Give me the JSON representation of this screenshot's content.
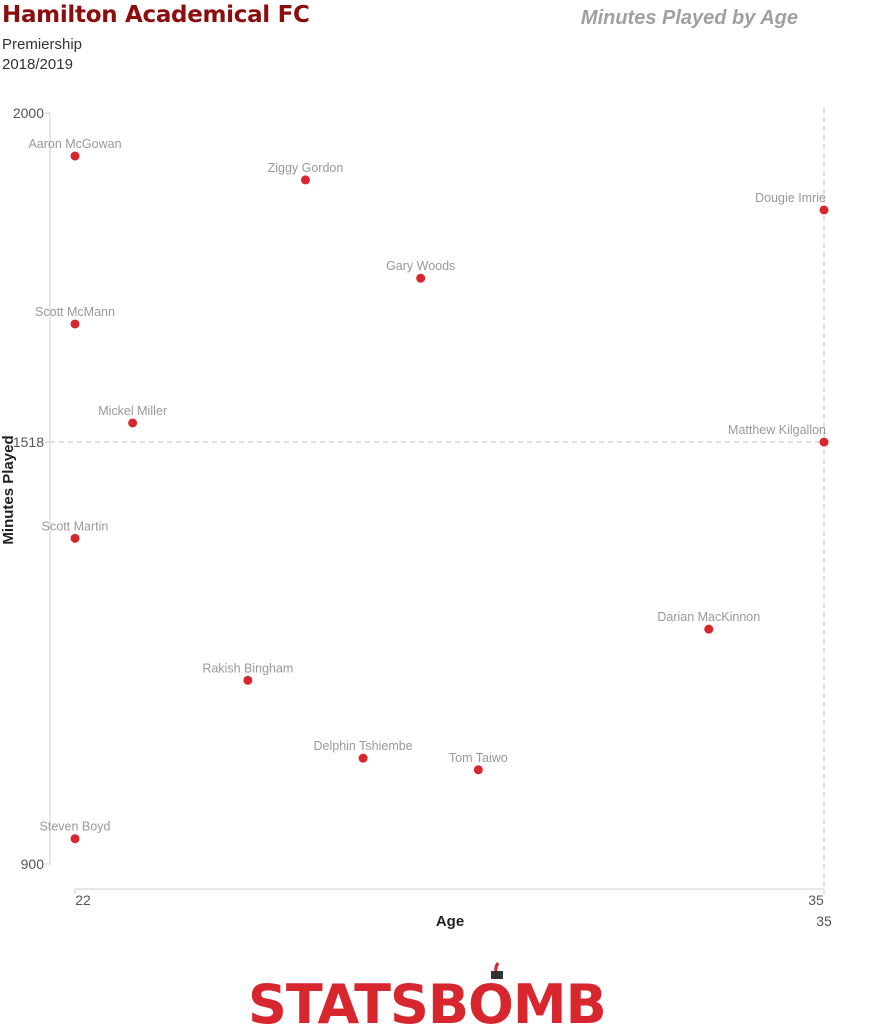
{
  "header": {
    "team": "Hamilton Academical FC",
    "competition": "Premiership",
    "season": "2018/2019",
    "chart_title": "Minutes Played by Age"
  },
  "colors": {
    "team": "#8b0d0d",
    "point": "#d8262e",
    "label": "#999999"
  },
  "logo": {
    "text": "STATSBOMB"
  },
  "chart_data": {
    "type": "scatter",
    "title": "Minutes Played by Age",
    "xlabel": "Age",
    "ylabel": "Minutes Played",
    "xlim": [
      22,
      35
    ],
    "ylim": [
      900,
      2000
    ],
    "x_ticks": [
      "22",
      "35"
    ],
    "y_ticks": [
      "2000",
      "1518",
      "900"
    ],
    "reference_lines": {
      "x": 35,
      "y": 1518,
      "x_label": "35",
      "y_label": "1518"
    },
    "grid": false,
    "points": [
      {
        "name": "Aaron McGowan",
        "x": 22,
        "y": 1937
      },
      {
        "name": "Ziggy Gordon",
        "x": 26,
        "y": 1902
      },
      {
        "name": "Dougie Imrie",
        "x": 35,
        "y": 1858
      },
      {
        "name": "Gary Woods",
        "x": 28,
        "y": 1758
      },
      {
        "name": "Scott McMann",
        "x": 22,
        "y": 1691
      },
      {
        "name": "Mickel Miller",
        "x": 23,
        "y": 1546
      },
      {
        "name": "Matthew Kilgallon",
        "x": 35,
        "y": 1518
      },
      {
        "name": "Scott Martin",
        "x": 22,
        "y": 1377
      },
      {
        "name": "Darian MacKinnon",
        "x": 33,
        "y": 1244
      },
      {
        "name": "Rakish Bingham",
        "x": 25,
        "y": 1169
      },
      {
        "name": "Delphin Tshiembe",
        "x": 27,
        "y": 1055
      },
      {
        "name": "Tom Taiwo",
        "x": 29,
        "y": 1038
      },
      {
        "name": "Steven Boyd",
        "x": 22,
        "y": 937
      }
    ]
  }
}
